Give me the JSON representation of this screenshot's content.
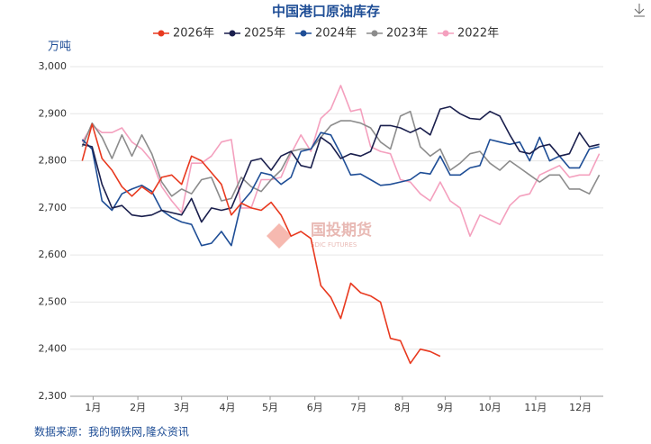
{
  "chart_data": {
    "type": "line",
    "title": "中国港口原油库存",
    "y_label": "万吨",
    "source": "数据来源：我的钢铁网,隆众资讯",
    "watermark": "国投期货",
    "watermark_sub": "SDIC FUTURES",
    "x": [
      1,
      2,
      3,
      4,
      5,
      6,
      7,
      8,
      9,
      10,
      11,
      12,
      13,
      14,
      15,
      16,
      17,
      18,
      19,
      20,
      21,
      22,
      23,
      24,
      25,
      26,
      27,
      28,
      29,
      30,
      31,
      32,
      33,
      34,
      35,
      36,
      37,
      38,
      39,
      40,
      41,
      42,
      43,
      44,
      45,
      46,
      47,
      48,
      49,
      50,
      51,
      52,
      53
    ],
    "xlim": [
      -0.2,
      53.4
    ],
    "xticks": [
      {
        "value": 2.1,
        "label": "1月"
      },
      {
        "value": 6.6,
        "label": "2月"
      },
      {
        "value": 11.0,
        "label": "3月"
      },
      {
        "value": 15.6,
        "label": "4月"
      },
      {
        "value": 19.9,
        "label": "5月"
      },
      {
        "value": 24.4,
        "label": "6月"
      },
      {
        "value": 28.8,
        "label": "7月"
      },
      {
        "value": 33.2,
        "label": "8月"
      },
      {
        "value": 37.5,
        "label": "9月"
      },
      {
        "value": 42.0,
        "label": "10月"
      },
      {
        "value": 46.6,
        "label": "11月"
      },
      {
        "value": 51.1,
        "label": "12月"
      }
    ],
    "ylim": [
      2300,
      3000
    ],
    "yticks": [
      {
        "value": 2300,
        "label": "2,300"
      },
      {
        "value": 2400,
        "label": "2,400"
      },
      {
        "value": 2500,
        "label": "2,500"
      },
      {
        "value": 2600,
        "label": "2,600"
      },
      {
        "value": 2700,
        "label": "2,700"
      },
      {
        "value": 2800,
        "label": "2,800"
      },
      {
        "value": 2900,
        "label": "2,900"
      },
      {
        "value": 3000,
        "label": "3,000"
      }
    ],
    "grid": true,
    "series": [
      {
        "name": "2026年",
        "color": "#e8391f",
        "values": [
          2800,
          2878,
          2805,
          2780,
          2745,
          2725,
          2745,
          2730,
          2765,
          2770,
          2750,
          2810,
          2800,
          2775,
          2750,
          2685,
          2710,
          2700,
          2695,
          2712,
          2685,
          2640,
          2650,
          2635,
          2535,
          2510,
          2465,
          2540,
          2520,
          2513,
          2500,
          2423,
          2418,
          2370,
          2400,
          2395,
          2385,
          null,
          null,
          null,
          null,
          null,
          null,
          null,
          null,
          null,
          null,
          null,
          null,
          null,
          null,
          null,
          null
        ]
      },
      {
        "name": "2025年",
        "color": "#1a1f4d",
        "values": [
          2835,
          2830,
          2750,
          2700,
          2705,
          2685,
          2682,
          2685,
          2695,
          2690,
          2685,
          2720,
          2670,
          2700,
          2695,
          2700,
          2750,
          2800,
          2805,
          2780,
          2810,
          2820,
          2790,
          2785,
          2850,
          2835,
          2805,
          2815,
          2810,
          2820,
          2875,
          2875,
          2870,
          2860,
          2870,
          2855,
          2910,
          2915,
          2900,
          2890,
          2888,
          2905,
          2895,
          2855,
          2820,
          2815,
          2830,
          2835,
          2810,
          2815,
          2860,
          2830,
          2835
        ]
      },
      {
        "name": "2024年",
        "color": "#1f4e96",
        "values": [
          2845,
          2825,
          2715,
          2695,
          2730,
          2740,
          2748,
          2735,
          2695,
          2680,
          2670,
          2665,
          2620,
          2625,
          2650,
          2620,
          2710,
          2735,
          2775,
          2770,
          2750,
          2765,
          2820,
          2825,
          2860,
          2855,
          2815,
          2770,
          2772,
          2760,
          2748,
          2750,
          2755,
          2760,
          2775,
          2772,
          2810,
          2770,
          2770,
          2785,
          2790,
          2845,
          2840,
          2835,
          2840,
          2800,
          2850,
          2800,
          2810,
          2785,
          2785,
          2825,
          2830
        ]
      },
      {
        "name": "2023年",
        "color": "#8c8c8c",
        "values": [
          2830,
          2880,
          2850,
          2805,
          2855,
          2810,
          2855,
          2815,
          2755,
          2725,
          2740,
          2730,
          2760,
          2765,
          2715,
          2720,
          2765,
          2745,
          2735,
          2760,
          2780,
          2820,
          2825,
          2825,
          2850,
          2875,
          2885,
          2885,
          2880,
          2870,
          2840,
          2825,
          2895,
          2905,
          2830,
          2810,
          2825,
          2780,
          2795,
          2815,
          2820,
          2795,
          2780,
          2800,
          2785,
          2770,
          2755,
          2770,
          2770,
          2740,
          2740,
          2730,
          2770
        ]
      },
      {
        "name": "2022年",
        "color": "#f4a0be",
        "values": [
          2840,
          2875,
          2860,
          2860,
          2870,
          2840,
          2825,
          2800,
          2745,
          2715,
          2690,
          2795,
          2795,
          2810,
          2840,
          2845,
          2700,
          2700,
          2760,
          2760,
          2765,
          2815,
          2855,
          2820,
          2890,
          2910,
          2960,
          2905,
          2910,
          2830,
          2820,
          2815,
          2760,
          2755,
          2730,
          2715,
          2755,
          2715,
          2700,
          2640,
          2685,
          2675,
          2665,
          2705,
          2725,
          2730,
          2770,
          2780,
          2790,
          2765,
          2770,
          2770,
          2815
        ]
      }
    ]
  }
}
